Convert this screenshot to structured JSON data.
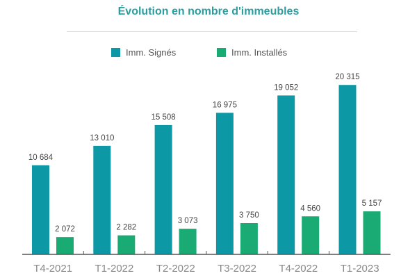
{
  "chart_data": {
    "type": "bar",
    "title": "Évolution en nombre d'immeubles",
    "categories": [
      "T4-2021",
      "T1-2022",
      "T2-2022",
      "T3-2022",
      "T4-2022",
      "T1-2023"
    ],
    "series": [
      {
        "name": "Imm. Signés",
        "color": "#0d98a6",
        "values": [
          10684,
          13010,
          15508,
          16975,
          19052,
          20315
        ],
        "labels": [
          "10 684",
          "13 010",
          "15 508",
          "16 975",
          "19 052",
          "20 315"
        ]
      },
      {
        "name": "Imm. Installés",
        "color": "#1aab74",
        "values": [
          2072,
          2282,
          3073,
          3750,
          4560,
          5157
        ],
        "labels": [
          "2 072",
          "2 282",
          "3 073",
          "3 750",
          "4 560",
          "5 157"
        ]
      }
    ],
    "xlabel": "",
    "ylabel": "",
    "ylim": [
      0,
      25000
    ],
    "grid": false,
    "legend": "top"
  }
}
